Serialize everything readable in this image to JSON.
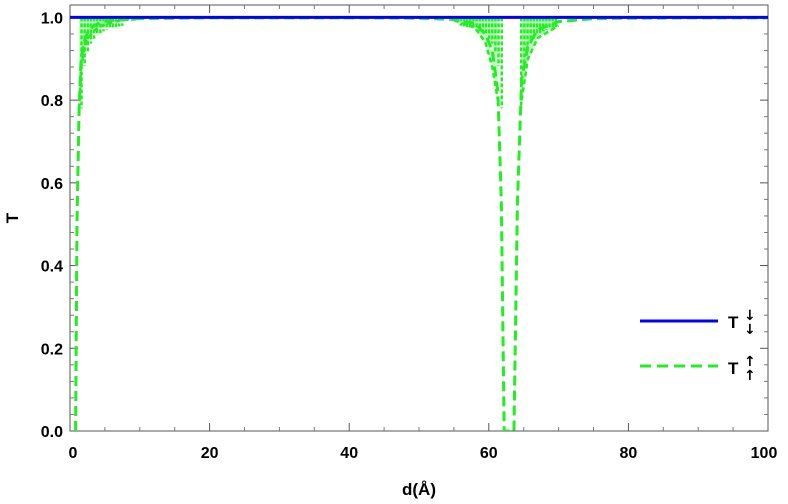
{
  "chart_data": {
    "type": "line",
    "title": "",
    "xlabel": "d(Å)",
    "ylabel": "T",
    "xlim": [
      0,
      100
    ],
    "ylim": [
      0,
      1.03
    ],
    "x_ticks": [
      "0",
      "20",
      "40",
      "60",
      "80",
      "100"
    ],
    "y_ticks": [
      "0.0",
      "0.2",
      "0.4",
      "0.6",
      "0.8",
      "1.0"
    ],
    "grid": false,
    "legend_position": "right",
    "series": [
      {
        "name": "T↓↓",
        "legend_main": "T",
        "legend_sup": "↓",
        "legend_sub": "↓",
        "color": "#0000ff",
        "style": "solid",
        "x": [
          0,
          100
        ],
        "y": [
          1.0,
          1.0
        ]
      },
      {
        "name": "T↑↑",
        "legend_main": "T",
        "legend_sup": "↑",
        "legend_sub": "↑",
        "color": "#22ee22",
        "style": "dashed",
        "x": [
          0.8,
          1.0,
          1.3,
          1.6,
          2.0,
          2.6,
          3.3,
          4.0,
          5.0,
          6.5,
          8.0,
          10,
          15,
          20,
          30,
          40,
          50,
          55,
          58,
          59.5,
          60.5,
          61.3,
          61.8,
          62.2,
          62.5,
          62.8,
          63.2,
          63.6,
          64.1,
          64.7,
          65.6,
          67,
          70,
          75,
          80,
          90,
          100
        ],
        "y": [
          0.0,
          0.5,
          0.78,
          0.9,
          0.94,
          0.966,
          0.978,
          0.985,
          0.99,
          0.994,
          0.996,
          0.997,
          0.998,
          0.999,
          0.999,
          0.999,
          0.998,
          0.995,
          0.985,
          0.96,
          0.92,
          0.82,
          0.55,
          0.0,
          0.0,
          0.0,
          0.0,
          0.0,
          0.55,
          0.85,
          0.93,
          0.97,
          0.99,
          0.997,
          0.998,
          0.999,
          0.999
        ],
        "envelope_low_x": [
          1.3,
          1.6,
          2.0,
          2.6,
          3.3,
          4.0,
          5.0,
          6.5,
          8.0,
          10,
          55,
          58,
          59.5,
          60.5,
          61.3,
          64.7,
          65.6,
          67,
          70
        ],
        "envelope_low_y": [
          0.78,
          0.88,
          0.92,
          0.95,
          0.965,
          0.975,
          0.983,
          0.99,
          0.994,
          0.996,
          0.993,
          0.975,
          0.94,
          0.88,
          0.8,
          0.8,
          0.9,
          0.95,
          0.98
        ]
      }
    ]
  }
}
